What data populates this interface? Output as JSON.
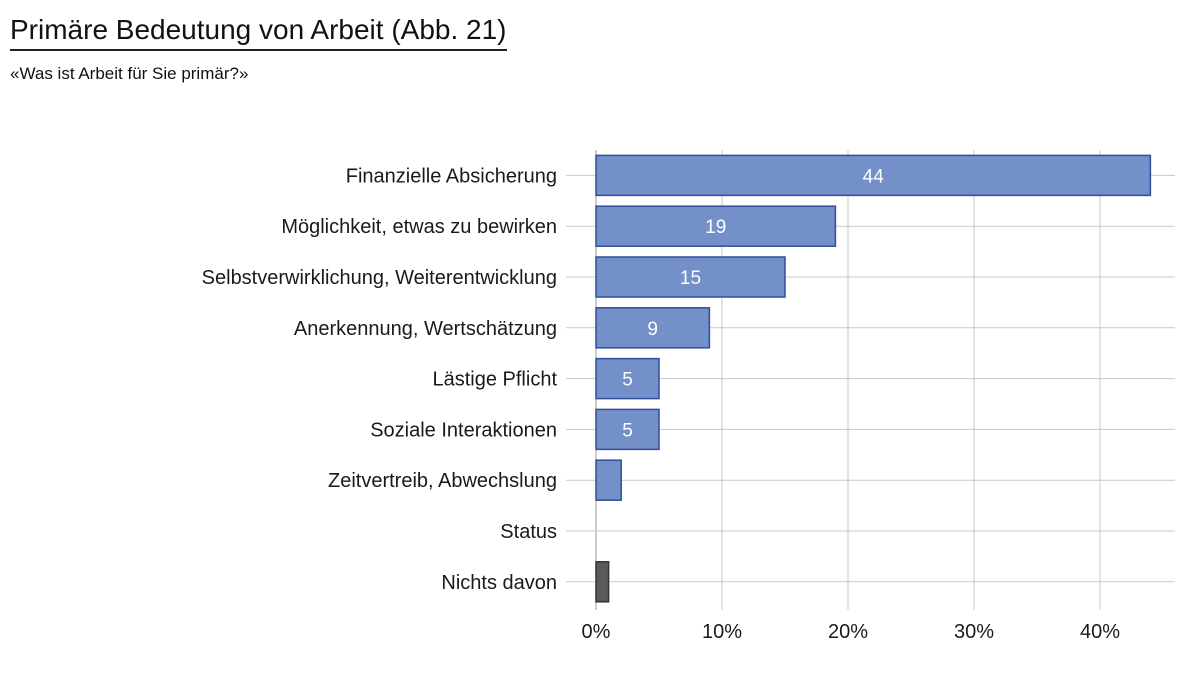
{
  "header": {
    "title": "Primäre Bedeutung von Arbeit  (Abb. 21)",
    "subtitle": "«Was ist Arbeit für Sie primär?»"
  },
  "chart_data": {
    "type": "bar",
    "orientation": "horizontal",
    "categories": [
      "Finanzielle Absicherung",
      "Möglichkeit, etwas zu bewirken",
      "Selbstverwirklichung, Weiterentwicklung",
      "Anerkennung, Wertschätzung",
      "Lästige Pflicht",
      "Soziale Interaktionen",
      "Zeitvertreib, Abwechslung",
      "Status",
      "Nichts davon"
    ],
    "values": [
      44,
      19,
      15,
      9,
      5,
      5,
      2,
      0,
      1
    ],
    "data_labels": [
      "44",
      "19",
      "15",
      "9",
      "5",
      "5",
      "",
      "",
      ""
    ],
    "bar_colors": [
      "#7390c8",
      "#7390c8",
      "#7390c8",
      "#7390c8",
      "#7390c8",
      "#7390c8",
      "#7390c8",
      "#7390c8",
      "#5a5a5a"
    ],
    "bar_stroke_colors": [
      "#2f4f9a",
      "#2f4f9a",
      "#2f4f9a",
      "#2f4f9a",
      "#2f4f9a",
      "#2f4f9a",
      "#2f4f9a",
      "#2f4f9a",
      "#333333"
    ],
    "xlim": [
      0,
      45
    ],
    "xticks": [
      0,
      10,
      20,
      30,
      40
    ],
    "xtick_labels": [
      "0%",
      "10%",
      "20%",
      "30%",
      "40%"
    ],
    "grid": true,
    "xlabel": "",
    "ylabel": ""
  }
}
